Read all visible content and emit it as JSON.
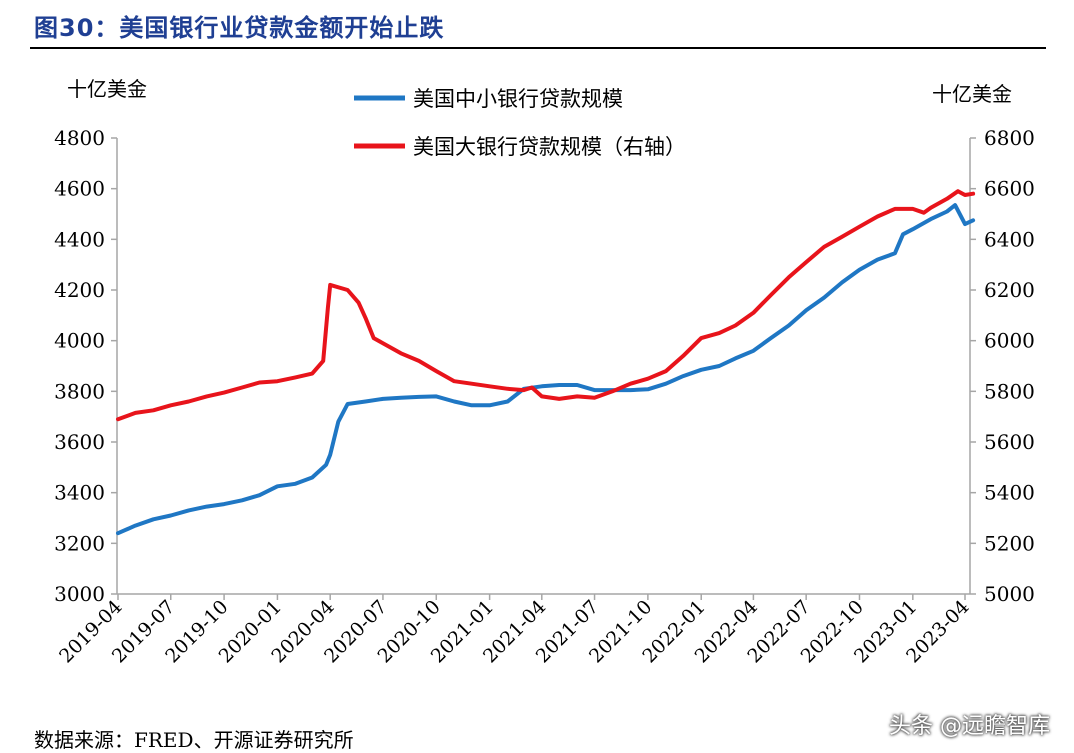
{
  "figure": {
    "title": "图30：美国银行业贷款金额开始止跌",
    "source": "数据来源：FRED、开源证券研究所",
    "watermark": "头条 @远瞻智库"
  },
  "chart_data": {
    "type": "line",
    "title": "图30：美国银行业贷款金额开始止跌",
    "left_axis_unit": "十亿美金",
    "right_axis_unit": "十亿美金",
    "left_ylim": [
      3000,
      4800
    ],
    "right_ylim": [
      5000,
      6800
    ],
    "left_ticks": [
      3000,
      3200,
      3400,
      3600,
      3800,
      4000,
      4200,
      4400,
      4600,
      4800
    ],
    "right_ticks": [
      5000,
      5200,
      5400,
      5600,
      5800,
      6000,
      6200,
      6400,
      6600,
      6800
    ],
    "x_ticks": [
      "2019-04",
      "2019-07",
      "2019-10",
      "2020-01",
      "2020-04",
      "2020-07",
      "2020-10",
      "2021-01",
      "2021-04",
      "2021-07",
      "2021-10",
      "2022-01",
      "2022-04",
      "2022-07",
      "2022-10",
      "2023-01",
      "2023-04"
    ],
    "grid": false,
    "legend_position": "top-center",
    "series": [
      {
        "name": "美国中小银行贷款规模",
        "axis": "left",
        "color": "#1f77c4",
        "points": [
          [
            "2019-04",
            3240
          ],
          [
            "2019-05",
            3270
          ],
          [
            "2019-06",
            3295
          ],
          [
            "2019-07",
            3310
          ],
          [
            "2019-08",
            3330
          ],
          [
            "2019-09",
            3345
          ],
          [
            "2019-10",
            3355
          ],
          [
            "2019-11",
            3370
          ],
          [
            "2019-12",
            3390
          ],
          [
            "2020-01",
            3425
          ],
          [
            "2020-02",
            3435
          ],
          [
            "2020-03",
            3460
          ],
          [
            "2020-03-25",
            3510
          ],
          [
            "2020-04",
            3550
          ],
          [
            "2020-04-15",
            3680
          ],
          [
            "2020-05",
            3750
          ],
          [
            "2020-06",
            3760
          ],
          [
            "2020-07",
            3770
          ],
          [
            "2020-08",
            3775
          ],
          [
            "2020-09",
            3778
          ],
          [
            "2020-10",
            3780
          ],
          [
            "2020-11",
            3760
          ],
          [
            "2020-12",
            3745
          ],
          [
            "2021-01",
            3745
          ],
          [
            "2021-02",
            3760
          ],
          [
            "2021-03",
            3810
          ],
          [
            "2021-04",
            3820
          ],
          [
            "2021-05",
            3825
          ],
          [
            "2021-06",
            3825
          ],
          [
            "2021-07",
            3805
          ],
          [
            "2021-08",
            3805
          ],
          [
            "2021-09",
            3805
          ],
          [
            "2021-10",
            3808
          ],
          [
            "2021-11",
            3830
          ],
          [
            "2021-12",
            3860
          ],
          [
            "2022-01",
            3885
          ],
          [
            "2022-02",
            3900
          ],
          [
            "2022-03",
            3930
          ],
          [
            "2022-04",
            3960
          ],
          [
            "2022-05",
            4010
          ],
          [
            "2022-06",
            4060
          ],
          [
            "2022-07",
            4120
          ],
          [
            "2022-08",
            4170
          ],
          [
            "2022-09",
            4230
          ],
          [
            "2022-10",
            4280
          ],
          [
            "2022-11",
            4320
          ],
          [
            "2022-12",
            4345
          ],
          [
            "2022-12-15",
            4420
          ],
          [
            "2023-01",
            4440
          ],
          [
            "2023-02",
            4480
          ],
          [
            "2023-03",
            4510
          ],
          [
            "2023-03-15",
            4535
          ],
          [
            "2023-04",
            4460
          ],
          [
            "2023-04-15",
            4475
          ]
        ]
      },
      {
        "name": "美国大银行贷款规模（右轴）",
        "axis": "right",
        "color": "#e8141b",
        "points": [
          [
            "2019-04",
            5690
          ],
          [
            "2019-05",
            5715
          ],
          [
            "2019-06",
            5725
          ],
          [
            "2019-07",
            5745
          ],
          [
            "2019-08",
            5760
          ],
          [
            "2019-09",
            5780
          ],
          [
            "2019-10",
            5795
          ],
          [
            "2019-11",
            5815
          ],
          [
            "2019-12",
            5835
          ],
          [
            "2020-01",
            5840
          ],
          [
            "2020-02",
            5855
          ],
          [
            "2020-03",
            5870
          ],
          [
            "2020-03-20",
            5920
          ],
          [
            "2020-03-28",
            6130
          ],
          [
            "2020-04",
            6220
          ],
          [
            "2020-05",
            6200
          ],
          [
            "2020-05-20",
            6150
          ],
          [
            "2020-06",
            6090
          ],
          [
            "2020-06-15",
            6010
          ],
          [
            "2020-07",
            5990
          ],
          [
            "2020-08",
            5950
          ],
          [
            "2020-09",
            5920
          ],
          [
            "2020-10",
            5880
          ],
          [
            "2020-11",
            5840
          ],
          [
            "2020-12",
            5830
          ],
          [
            "2021-01",
            5820
          ],
          [
            "2021-02",
            5810
          ],
          [
            "2021-03",
            5805
          ],
          [
            "2021-03-15",
            5815
          ],
          [
            "2021-04",
            5780
          ],
          [
            "2021-05",
            5770
          ],
          [
            "2021-06",
            5780
          ],
          [
            "2021-07",
            5775
          ],
          [
            "2021-08",
            5800
          ],
          [
            "2021-09",
            5830
          ],
          [
            "2021-10",
            5850
          ],
          [
            "2021-11",
            5880
          ],
          [
            "2021-12",
            5940
          ],
          [
            "2022-01",
            6010
          ],
          [
            "2022-02",
            6030
          ],
          [
            "2022-03",
            6060
          ],
          [
            "2022-04",
            6110
          ],
          [
            "2022-05",
            6180
          ],
          [
            "2022-06",
            6250
          ],
          [
            "2022-07",
            6310
          ],
          [
            "2022-08",
            6370
          ],
          [
            "2022-09",
            6410
          ],
          [
            "2022-10",
            6450
          ],
          [
            "2022-11",
            6490
          ],
          [
            "2022-12",
            6520
          ],
          [
            "2023-01",
            6520
          ],
          [
            "2023-01-20",
            6505
          ],
          [
            "2023-02",
            6525
          ],
          [
            "2023-03",
            6560
          ],
          [
            "2023-03-20",
            6590
          ],
          [
            "2023-04",
            6575
          ],
          [
            "2023-04-15",
            6580
          ]
        ]
      }
    ]
  }
}
